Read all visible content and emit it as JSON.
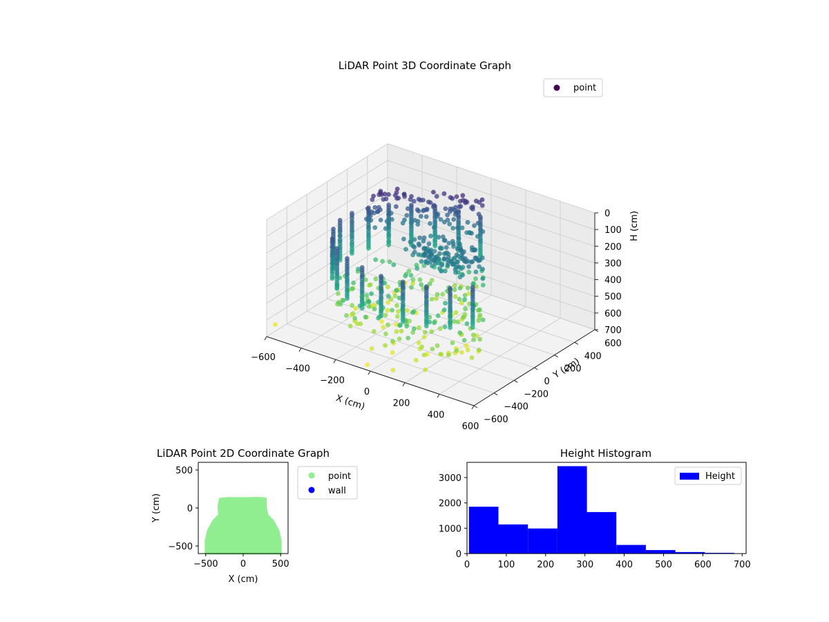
{
  "chart_data": [
    {
      "type": "scatter3d",
      "title": "LiDAR Point 3D Coordinate Graph",
      "xlabel": "X (cm)",
      "ylabel": "Y (cm)",
      "zlabel": "H (cm)",
      "xlim": [
        -600,
        600
      ],
      "ylim": [
        -600,
        600
      ],
      "zlim": [
        0,
        700
      ],
      "z_inverted": true,
      "xticks": [
        "−600",
        "−400",
        "−200",
        "0",
        "200",
        "400",
        "600"
      ],
      "yticks": [
        "−600",
        "−400",
        "−200",
        "0",
        "200",
        "400",
        "600"
      ],
      "zticks": [
        "0",
        "100",
        "200",
        "300",
        "400",
        "500",
        "600",
        "700"
      ],
      "colormap": "viridis",
      "grid": true,
      "legend": {
        "position": "top-right",
        "entries": [
          {
            "name": "point",
            "color": "#440154"
          }
        ]
      },
      "ring_radius": 500,
      "ring_center_y": 0,
      "post_count": 26,
      "post_height_range": [
        180,
        430
      ],
      "floor_height_range": [
        430,
        680
      ]
    },
    {
      "type": "scatter",
      "title": "LiDAR Point 2D Coordinate Graph",
      "xlabel": "X (cm)",
      "ylabel": "Y (cm)",
      "xlim": [
        -600,
        600
      ],
      "ylim": [
        -600,
        600
      ],
      "xticks": [
        "−500",
        "0",
        "500"
      ],
      "yticks": [
        "−500",
        "0",
        "500"
      ],
      "legend": {
        "position": "outside-right",
        "entries": [
          {
            "name": "point",
            "color": "#90ee90"
          },
          {
            "name": "wall",
            "color": "#0000ff"
          }
        ]
      },
      "region": [
        [
          -500,
          -600
        ],
        [
          -500,
          -430
        ],
        [
          -470,
          -300
        ],
        [
          -400,
          -170
        ],
        [
          -320,
          -90
        ],
        [
          -330,
          20
        ],
        [
          -310,
          120
        ],
        [
          -200,
          130
        ],
        [
          0,
          128
        ],
        [
          200,
          132
        ],
        [
          300,
          125
        ],
        [
          300,
          20
        ],
        [
          320,
          -90
        ],
        [
          400,
          -170
        ],
        [
          470,
          -300
        ],
        [
          500,
          -430
        ],
        [
          500,
          -600
        ]
      ]
    },
    {
      "type": "histogram",
      "title": "Height Histogram",
      "xlim": [
        0,
        710
      ],
      "ylim": [
        0,
        3600
      ],
      "xticks": [
        0,
        100,
        200,
        300,
        400,
        500,
        600,
        700
      ],
      "yticks": [
        0,
        1000,
        2000,
        3000
      ],
      "bin_edges": [
        5,
        80,
        155,
        230,
        305,
        380,
        455,
        530,
        605,
        680
      ],
      "counts": [
        1850,
        1150,
        990,
        3450,
        1640,
        340,
        140,
        60,
        30
      ],
      "color": "#0000ff",
      "legend": {
        "position": "top-right",
        "entries": [
          {
            "name": "Height",
            "color": "#0000ff"
          }
        ]
      }
    }
  ]
}
